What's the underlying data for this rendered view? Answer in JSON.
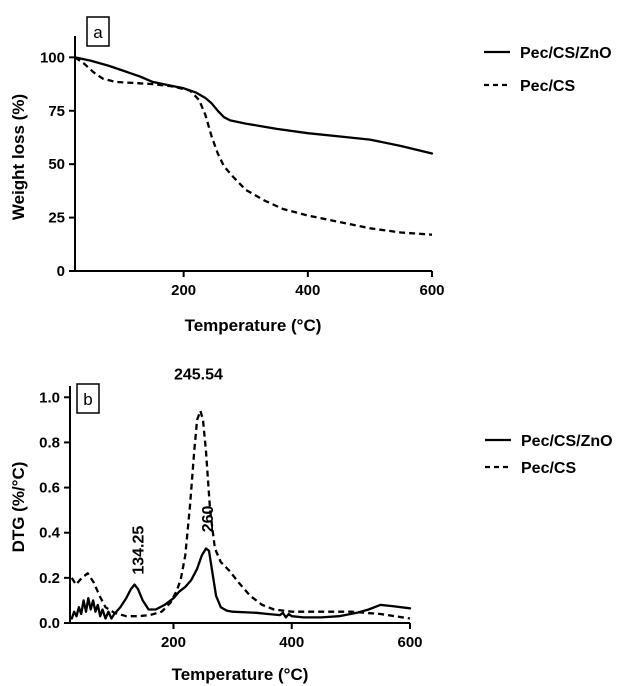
{
  "chart_data": [
    {
      "type": "line",
      "panel_label": "a",
      "xlabel": "Temperature (°C)",
      "ylabel": "Weight loss (%)",
      "xlim": [
        25,
        600
      ],
      "ylim": [
        0,
        110
      ],
      "xticks": [
        200,
        400,
        600
      ],
      "yticks": [
        0,
        25,
        50,
        75,
        100
      ],
      "legend_position": "top-right, outside plot",
      "series": [
        {
          "name": "Pec/CS/ZnO",
          "line_style": "solid",
          "x": [
            25,
            50,
            80,
            110,
            130,
            150,
            175,
            200,
            220,
            235,
            245,
            255,
            265,
            275,
            300,
            350,
            400,
            450,
            500,
            550,
            600
          ],
          "y": [
            100,
            98.5,
            96,
            93,
            91,
            88.5,
            87,
            85.5,
            83.5,
            81,
            78.5,
            75,
            72,
            70.5,
            69,
            66.5,
            64.5,
            63,
            61.5,
            58.5,
            55
          ]
        },
        {
          "name": "Pec/CS",
          "line_style": "dashed",
          "x": [
            25,
            40,
            55,
            70,
            90,
            120,
            150,
            180,
            210,
            225,
            235,
            245,
            255,
            265,
            280,
            300,
            330,
            360,
            400,
            450,
            500,
            550,
            600
          ],
          "y": [
            100,
            97,
            93,
            90,
            88.5,
            88,
            87.5,
            86.5,
            84.5,
            80,
            73,
            63,
            55,
            49,
            44,
            38,
            33,
            29,
            26,
            23,
            20,
            18,
            17
          ]
        }
      ]
    },
    {
      "type": "line",
      "panel_label": "b",
      "xlabel": "Temperature (°C)",
      "ylabel": "DTG (%/°C)",
      "xlim": [
        25,
        600
      ],
      "ylim": [
        0,
        1.05
      ],
      "xticks": [
        200,
        400,
        600
      ],
      "yticks": [
        0.0,
        0.2,
        0.4,
        0.6,
        0.8,
        1.0
      ],
      "legend_position": "top-right, outside plot",
      "annotations": [
        {
          "text": "245.54",
          "x": 245.54,
          "y": 1.0
        },
        {
          "text": "260",
          "x": 260,
          "y": 0.34
        },
        {
          "text": "134.25",
          "x": 134.25,
          "y": 0.17
        }
      ],
      "series": [
        {
          "name": "Pec/CS/ZnO",
          "line_style": "solid",
          "x": [
            28,
            32,
            36,
            40,
            44,
            48,
            52,
            56,
            60,
            64,
            68,
            72,
            76,
            80,
            85,
            90,
            95,
            100,
            110,
            120,
            128,
            134,
            140,
            148,
            158,
            170,
            185,
            200,
            210,
            220,
            230,
            240,
            248,
            255,
            260,
            266,
            272,
            280,
            290,
            300,
            340,
            360,
            380,
            385,
            390,
            395,
            400,
            420,
            450,
            480,
            510,
            530,
            550,
            570,
            600
          ],
          "y": [
            0.02,
            0.05,
            0.03,
            0.07,
            0.04,
            0.1,
            0.05,
            0.11,
            0.06,
            0.1,
            0.05,
            0.08,
            0.03,
            0.06,
            0.02,
            0.05,
            0.02,
            0.04,
            0.07,
            0.11,
            0.15,
            0.17,
            0.15,
            0.1,
            0.06,
            0.06,
            0.08,
            0.11,
            0.14,
            0.16,
            0.19,
            0.24,
            0.3,
            0.33,
            0.32,
            0.22,
            0.12,
            0.07,
            0.055,
            0.05,
            0.045,
            0.04,
            0.035,
            0.045,
            0.025,
            0.04,
            0.03,
            0.025,
            0.025,
            0.03,
            0.045,
            0.06,
            0.08,
            0.075,
            0.065
          ]
        },
        {
          "name": "Pec/CS",
          "line_style": "dashed",
          "x": [
            28,
            35,
            45,
            55,
            65,
            75,
            85,
            100,
            120,
            140,
            160,
            180,
            195,
            205,
            212,
            220,
            228,
            235,
            240,
            245.54,
            250,
            255,
            262,
            270,
            280,
            295,
            310,
            330,
            350,
            370,
            400,
            450,
            500,
            550,
            600
          ],
          "y": [
            0.2,
            0.17,
            0.2,
            0.22,
            0.18,
            0.12,
            0.07,
            0.045,
            0.03,
            0.03,
            0.035,
            0.05,
            0.09,
            0.14,
            0.19,
            0.3,
            0.52,
            0.76,
            0.9,
            0.94,
            0.9,
            0.76,
            0.5,
            0.33,
            0.27,
            0.23,
            0.18,
            0.12,
            0.08,
            0.06,
            0.05,
            0.05,
            0.05,
            0.04,
            0.02
          ]
        }
      ]
    }
  ]
}
